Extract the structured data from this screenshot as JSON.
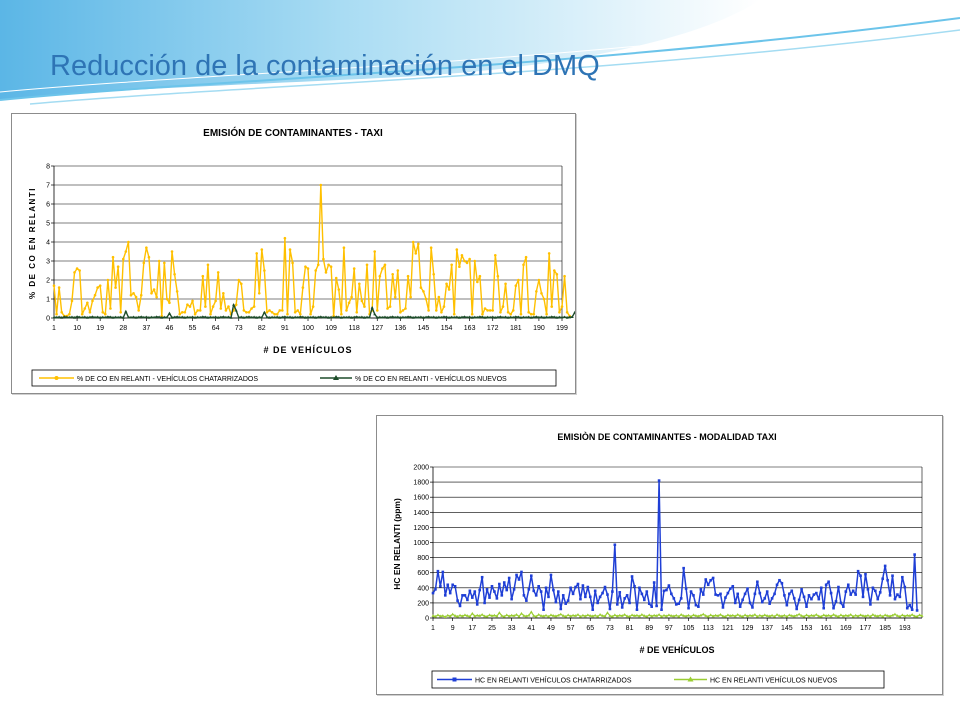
{
  "slide": {
    "title": "Reducción de la contaminación en el DMQ",
    "accent_color": "#2e74b5",
    "banner_color": "#7fc8ea"
  },
  "chart_data": [
    {
      "type": "line",
      "title": "EMISIÓN DE CONTAMINANTES - TAXI",
      "xlabel": "# DE VEHÍCULOS",
      "ylabel": "% DE CO EN RELANTI",
      "ylim": [
        0,
        8
      ],
      "yticks": [
        0,
        1,
        2,
        3,
        4,
        5,
        6,
        7,
        8
      ],
      "xticks": [
        1,
        10,
        19,
        28,
        37,
        46,
        55,
        64,
        73,
        82,
        91,
        100,
        109,
        118,
        127,
        136,
        145,
        154,
        163,
        172,
        181,
        190,
        199
      ],
      "x_start": 1,
      "x_end": 199,
      "grid": "horizontal",
      "legend_position": "bottom",
      "series": [
        {
          "name": "% DE CO EN RELANTI - VEHÍCULOS CHATARRIZADOS",
          "color": "#ffc000",
          "values": [
            1.7,
            0.2,
            1.6,
            0.3,
            0.1,
            0.1,
            0.2,
            0.9,
            2.4,
            2.6,
            2.5,
            0.2,
            0.5,
            0.8,
            0.3,
            0.9,
            1.2,
            1.6,
            1.7,
            0.3,
            0.2,
            2.0,
            0.5,
            3.2,
            1.6,
            2.7,
            0.3,
            3.1,
            3.5,
            4.0,
            1.2,
            1.3,
            1.1,
            0.4,
            1.2,
            2.9,
            3.7,
            3.2,
            1.3,
            1.5,
            1.1,
            3.0,
            0.1,
            2.9,
            1.0,
            0.8,
            3.5,
            2.3,
            1.4,
            0.2,
            0.3,
            0.3,
            0.7,
            0.6,
            0.9,
            0.2,
            0.4,
            0.4,
            2.2,
            0.6,
            2.8,
            0.2,
            0.6,
            0.9,
            2.4,
            0.5,
            1.3,
            0.4,
            0.6,
            0.2,
            0.4,
            0.7,
            2.0,
            1.8,
            0.4,
            0.3,
            0.3,
            0.5,
            0.6,
            3.4,
            1.3,
            3.6,
            2.5,
            0.3,
            0.4,
            0.3,
            0.2,
            0.2,
            0.4,
            0.4,
            4.2,
            0.2,
            3.6,
            2.9,
            0.3,
            0.4,
            0.2,
            1.6,
            2.7,
            2.6,
            0.2,
            0.6,
            2.5,
            2.8,
            7.0,
            3.1,
            2.4,
            2.8,
            2.7,
            0.1,
            2.1,
            1.5,
            0.2,
            3.7,
            0.4,
            0.8,
            1.1,
            2.6,
            0.3,
            1.8,
            0.9,
            0.6,
            2.8,
            0.2,
            0.4,
            3.5,
            0.4,
            2.2,
            2.6,
            2.8,
            0.5,
            0.6,
            2.3,
            1.1,
            2.5,
            0.3,
            0.4,
            0.5,
            2.2,
            1.1,
            4.0,
            3.4,
            3.9,
            1.6,
            1.4,
            1.0,
            0.4,
            3.7,
            2.3,
            0.4,
            1.1,
            0.3,
            0.6,
            1.8,
            1.5,
            2.8,
            0.2,
            3.6,
            2.7,
            3.3,
            3.0,
            2.9,
            3.1,
            0.2,
            3.0,
            1.9,
            2.2,
            0.2,
            0.5,
            0.4,
            0.4,
            0.4,
            3.3,
            2.2,
            0.3,
            0.6,
            1.8,
            0.3,
            0.2,
            0.4,
            1.7,
            2.0,
            0.2,
            2.8,
            3.2,
            0.3,
            0.2,
            0.2,
            1.4,
            2.0,
            1.3,
            1.0,
            0.2,
            3.4,
            0.6,
            2.5,
            2.3,
            0.3,
            0.6,
            2.2,
            0.3,
            0.1
          ]
        },
        {
          "name": "% DE CO EN RELANTI - VEHÍCULOS NUEVOS",
          "color": "#1e4d2b",
          "values": [
            0.04,
            0.03,
            0.05,
            0.02,
            0.06,
            0.04,
            0.03,
            0.05,
            0.02,
            0.07,
            0.04,
            0.03,
            0.05,
            0.02,
            0.04,
            0.06,
            0.03,
            0.05,
            0.02,
            0.04,
            0.03,
            0.06,
            0.05,
            0.02,
            0.04,
            0.03,
            0.05,
            0.02,
            0.35,
            0.04,
            0.03,
            0.05,
            0.02,
            0.04,
            0.06,
            0.03,
            0.05,
            0.02,
            0.04,
            0.03,
            0.06,
            0.05,
            0.02,
            0.04,
            0.03,
            0.25,
            0.02,
            0.04,
            0.06,
            0.03,
            0.05,
            0.02,
            0.04,
            0.03,
            0.05,
            0.02,
            0.04,
            0.03,
            0.06,
            0.05,
            0.02,
            0.04,
            0.03,
            0.05,
            0.02,
            0.04,
            0.06,
            0.03,
            0.05,
            0.02,
            0.7,
            0.4,
            0.03,
            0.05,
            0.02,
            0.04,
            0.06,
            0.03,
            0.05,
            0.02,
            0.04,
            0.03,
            0.3,
            0.05,
            0.02,
            0.04,
            0.03,
            0.05,
            0.02,
            0.04,
            0.06,
            0.03,
            0.05,
            0.02,
            0.04,
            0.03,
            0.06,
            0.05,
            0.02,
            0.04,
            0.03,
            0.05,
            0.02,
            0.04,
            0.06,
            0.03,
            0.05,
            0.02,
            0.04,
            0.03,
            0.06,
            0.05,
            0.02,
            0.04,
            0.03,
            0.05,
            0.02,
            0.04,
            0.06,
            0.03,
            0.05,
            0.02,
            0.04,
            0.03,
            0.55,
            0.2,
            0.02,
            0.04,
            0.03,
            0.05,
            0.02,
            0.04,
            0.06,
            0.03,
            0.05,
            0.02,
            0.04,
            0.03,
            0.06,
            0.05,
            0.02,
            0.04,
            0.03,
            0.05,
            0.02,
            0.04,
            0.06,
            0.03,
            0.05,
            0.02,
            0.04,
            0.03,
            0.06,
            0.05,
            0.02,
            0.04,
            0.03,
            0.05,
            0.02,
            0.04,
            0.06,
            0.03,
            0.05,
            0.02,
            0.04,
            0.03,
            0.06,
            0.05,
            0.02,
            0.04,
            0.03,
            0.05,
            0.02,
            0.04,
            0.06,
            0.03,
            0.05,
            0.02,
            0.04,
            0.03,
            0.06,
            0.05,
            0.02,
            0.04,
            0.03,
            0.05,
            0.02,
            0.04,
            0.06,
            0.03,
            0.05,
            0.02,
            0.04,
            0.03,
            0.06,
            0.05,
            0.02,
            0.04,
            0.03,
            0.05,
            0.02,
            0.04,
            0.06,
            0.3,
            0.05,
            0.3,
            0.04
          ]
        }
      ]
    },
    {
      "type": "line",
      "title": "EMISIÒN DE CONTAMINANTES - MODALIDAD TAXI",
      "xlabel": "# DE VEHÍCULOS",
      "ylabel": "HC EN RELANTI (ppm)",
      "ylim": [
        0,
        2000
      ],
      "yticks": [
        0,
        200,
        400,
        600,
        800,
        1000,
        1200,
        1400,
        1600,
        1800,
        2000
      ],
      "xticks": [
        1,
        9,
        17,
        25,
        33,
        41,
        49,
        57,
        65,
        73,
        81,
        89,
        97,
        105,
        113,
        121,
        129,
        137,
        145,
        153,
        161,
        169,
        177,
        185,
        193
      ],
      "x_start": 1,
      "x_end": 200,
      "grid": "horizontal",
      "legend_position": "bottom",
      "series": [
        {
          "name": "HC EN RELANTI VEHÍCULOS CHATARRIZADOS",
          "color": "#1f3fd6",
          "values": [
            330,
            380,
            620,
            420,
            610,
            300,
            440,
            330,
            440,
            420,
            230,
            160,
            300,
            300,
            240,
            360,
            270,
            350,
            180,
            370,
            540,
            200,
            380,
            270,
            420,
            350,
            260,
            450,
            300,
            470,
            370,
            530,
            250,
            380,
            570,
            510,
            610,
            300,
            230,
            380,
            560,
            360,
            300,
            420,
            350,
            110,
            400,
            280,
            570,
            370,
            210,
            350,
            120,
            300,
            190,
            230,
            400,
            320,
            410,
            450,
            250,
            430,
            280,
            410,
            280,
            110,
            360,
            200,
            280,
            330,
            410,
            310,
            120,
            350,
            970,
            180,
            340,
            140,
            260,
            300,
            200,
            550,
            420,
            110,
            400,
            320,
            240,
            350,
            190,
            150,
            470,
            160,
            1820,
            110,
            360,
            370,
            430,
            320,
            260,
            180,
            190,
            260,
            660,
            390,
            130,
            350,
            300,
            170,
            150,
            380,
            310,
            510,
            440,
            500,
            530,
            310,
            300,
            320,
            140,
            270,
            330,
            390,
            420,
            200,
            320,
            150,
            240,
            320,
            390,
            200,
            140,
            320,
            480,
            330,
            210,
            260,
            350,
            190,
            260,
            320,
            440,
            500,
            460,
            300,
            170,
            320,
            360,
            260,
            120,
            240,
            380,
            280,
            150,
            300,
            250,
            310,
            330,
            250,
            400,
            130,
            440,
            480,
            330,
            130,
            220,
            410,
            200,
            150,
            350,
            440,
            310,
            360,
            310,
            620,
            560,
            280,
            580,
            380,
            180,
            400,
            360,
            250,
            340,
            520,
            690,
            500,
            300,
            560,
            250,
            310,
            280,
            540,
            410,
            130,
            170,
            110,
            840,
            100
          ]
        },
        {
          "name": "HC EN RELANTI VEHÍCULOS NUEVOS",
          "color": "#9acd32",
          "values": [
            30,
            20,
            40,
            25,
            30,
            15,
            35,
            25,
            50,
            30,
            20,
            35,
            25,
            40,
            30,
            20,
            60,
            25,
            35,
            30,
            45,
            25,
            20,
            40,
            30,
            35,
            25,
            70,
            30,
            20,
            40,
            25,
            35,
            30,
            45,
            20,
            60,
            30,
            25,
            35,
            80,
            30,
            20,
            45,
            30,
            25,
            35,
            20,
            40,
            30,
            25,
            35,
            50,
            30,
            20,
            40,
            25,
            35,
            30,
            45,
            20,
            35,
            25,
            40,
            30,
            25,
            35,
            20,
            45,
            30,
            25,
            70,
            30,
            20,
            40,
            25,
            35,
            30,
            45,
            25,
            20,
            40,
            30,
            35,
            25,
            45,
            30,
            20,
            40,
            25,
            35,
            30,
            45,
            20,
            35,
            25,
            40,
            30,
            25,
            35,
            20,
            45,
            30,
            25,
            35,
            20,
            40,
            30,
            25,
            35,
            50,
            30,
            20,
            40,
            25,
            35,
            30,
            45,
            25,
            20,
            40,
            30,
            35,
            25,
            45,
            30,
            20,
            40,
            25,
            35,
            30,
            45,
            20,
            35,
            25,
            40,
            30,
            25,
            35,
            20,
            45,
            30,
            25,
            35,
            20,
            40,
            30,
            25,
            35,
            50,
            30,
            20,
            40,
            25,
            35,
            30,
            45,
            25,
            20,
            40,
            30,
            35,
            25,
            45,
            30,
            20,
            40,
            25,
            35,
            30,
            45,
            20,
            35,
            25,
            40,
            30,
            25,
            35,
            20,
            45,
            30,
            25,
            35,
            20,
            40,
            30,
            25,
            35,
            50,
            30,
            20,
            40,
            25,
            35,
            30,
            45,
            25,
            20,
            40,
            30
          ]
        }
      ]
    }
  ]
}
